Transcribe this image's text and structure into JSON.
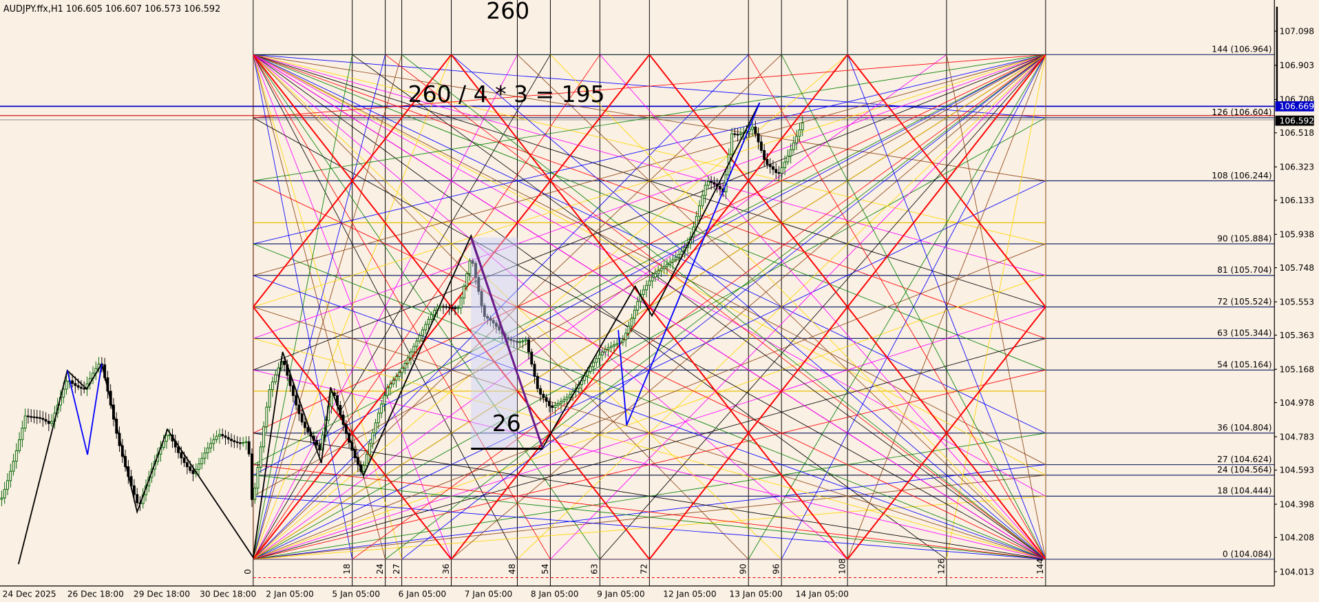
{
  "header": {
    "symbol_info": "AUDJPY.ffx,H1  106.605 106.607 106.573 106.592"
  },
  "price_axis": {
    "labels": [
      "107.098",
      "106.903",
      "106.708",
      "106.518",
      "106.323",
      "106.133",
      "105.938",
      "105.748",
      "105.553",
      "105.363",
      "105.168",
      "104.978",
      "104.783",
      "104.593",
      "104.398",
      "104.208",
      "104.013"
    ],
    "current_high": "106.669",
    "current_price": "106.592"
  },
  "levels": [
    "144 (106.964)",
    "126 (106.604)",
    "108 (106.244)",
    "90 (105.884)",
    "81 (105.704)",
    "72 (105.524)",
    "63 (105.344)",
    "54 (105.164)",
    "36 (104.804)",
    "27 (104.624)",
    "24 (104.564)",
    "18 (104.444)",
    "0 (104.084)"
  ],
  "time_axis": [
    "24 Dec 2025",
    "26 Dec 18:00",
    "29 Dec 18:00",
    "30 Dec 18:00",
    "2 Jan 05:00",
    "5 Jan 05:00",
    "6 Jan 05:00",
    "7 Jan 05:00",
    "8 Jan 05:00",
    "9 Jan 05:00",
    "12 Jan 05:00",
    "13 Jan 05:00",
    "14 Jan 05:00"
  ],
  "annotations": {
    "total": "260",
    "formula": "260 / 4 * 3 = 195",
    "subcount": "26"
  },
  "vertical_marks": [
    "0",
    "18",
    "24",
    "27",
    "36",
    "48",
    "54",
    "63",
    "72",
    "90",
    "96",
    "108",
    "126",
    "144"
  ]
}
